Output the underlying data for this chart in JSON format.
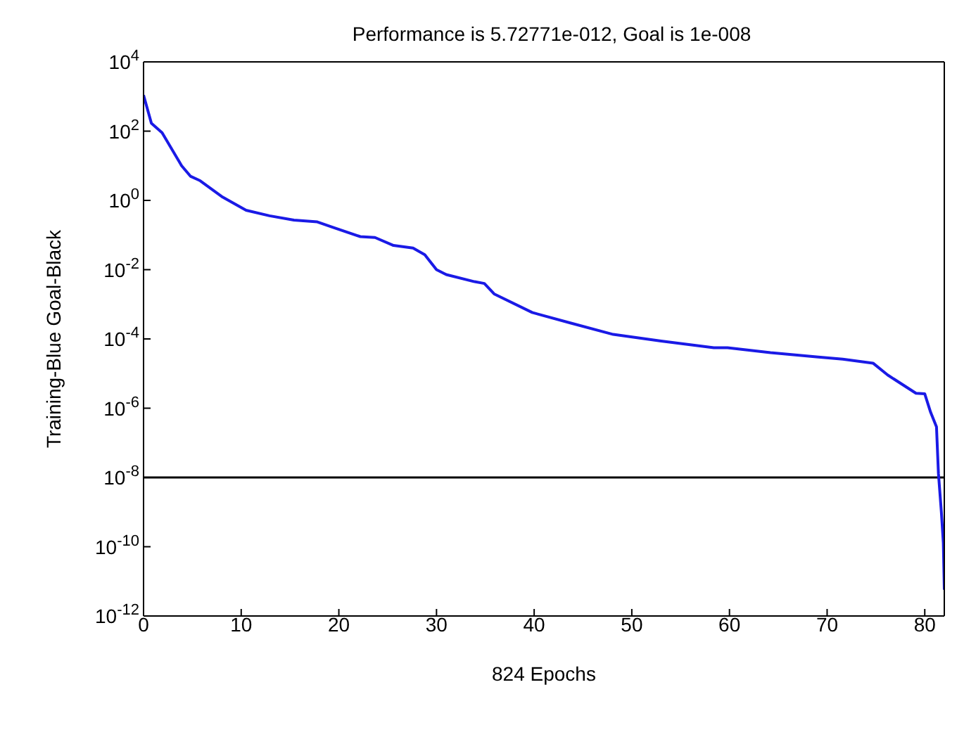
{
  "chart_data": {
    "type": "line",
    "title": "Performance is 5.72771e-012, Goal is 1e-008",
    "xlabel": "824 Epochs",
    "ylabel": "Training-Blue  Goal-Black",
    "log": "y",
    "x": [
      0,
      0.8,
      1.9,
      3.9,
      4.8,
      5.8,
      8.0,
      10.5,
      12.9,
      15.4,
      17.8,
      19.3,
      22.2,
      23.7,
      25.6,
      27.6,
      28.8,
      30.0,
      31.0,
      33.9,
      34.9,
      35.9,
      39.8,
      43.7,
      48.1,
      53.0,
      58.4,
      59.8,
      64.2,
      69.1,
      71.6,
      74.7,
      76.2,
      79.1,
      80.0,
      80.6,
      81.2,
      81.4,
      81.7,
      81.9,
      82.0
    ],
    "series": [
      {
        "color": "#1a1ae6",
        "values": [
          1100,
          170,
          90,
          10,
          5,
          3.7,
          1.3,
          0.52,
          0.36,
          0.27,
          0.24,
          0.17,
          0.09,
          0.085,
          0.05,
          0.042,
          0.027,
          0.01,
          0.0072,
          0.0045,
          0.004,
          0.002,
          0.00058,
          0.00029,
          0.000135,
          8.7e-05,
          5.6e-05,
          5.6e-05,
          4e-05,
          3e-05,
          2.6e-05,
          2e-05,
          9.1e-06,
          2.7e-06,
          2.6e-06,
          7.6e-07,
          2.9e-07,
          1.3e-08,
          1e-09,
          1.3e-10,
          5.73e-12
        ]
      }
    ],
    "xlim": [
      0,
      82
    ],
    "xticks": [
      0,
      10,
      20,
      30,
      40,
      50,
      60,
      70,
      80
    ],
    "ylim": [
      1e-12,
      10000.0
    ],
    "yticks": [
      {
        "value": 1e-12,
        "label": "10$^{-12}$"
      },
      {
        "value": 1e-10,
        "label": "10$^{-10}$"
      },
      {
        "value": 1e-08,
        "label": "10$^{-8}$"
      },
      {
        "value": 1e-06,
        "label": "10$^{-6}$"
      },
      {
        "value": 0.0001,
        "label": "10$^{-4}$"
      },
      {
        "value": 0.01,
        "label": "10$^{-2}$"
      },
      {
        "value": 1,
        "label": "10$^{0}$"
      },
      {
        "value": 100,
        "label": "10$^{2}$"
      },
      {
        "value": 10000,
        "label": "10$^{4}$"
      }
    ],
    "ref_lines": [
      {
        "axis": "y",
        "value": 1e-08,
        "color": "#000000"
      }
    ]
  }
}
